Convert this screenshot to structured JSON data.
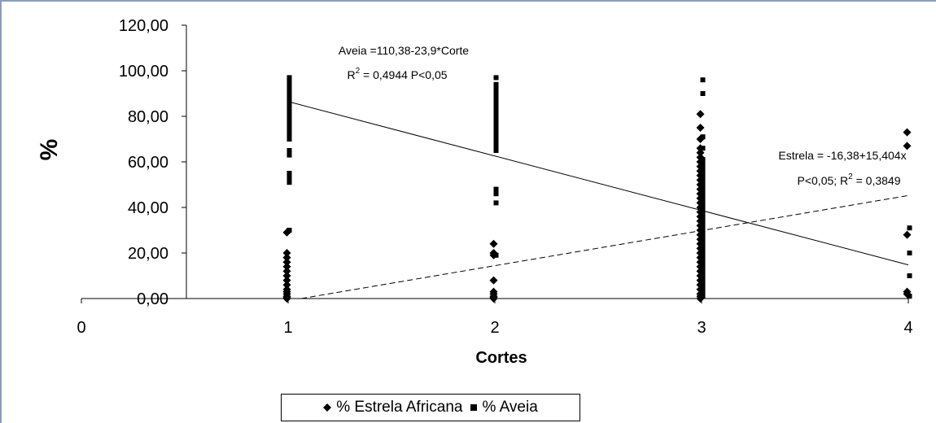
{
  "chart_data": {
    "type": "scatter",
    "xlabel": "Cortes",
    "ylabel": "%",
    "xlim": [
      0,
      4
    ],
    "ylim": [
      0,
      120
    ],
    "xticks": [
      "0",
      "1",
      "2",
      "3",
      "4"
    ],
    "yticks": [
      "0,00",
      "20,00",
      "40,00",
      "60,00",
      "80,00",
      "100,00",
      "120,00"
    ],
    "grid": false,
    "legend_position": "bottom",
    "series": [
      {
        "name": "% Estrela Africana",
        "marker": "diamond",
        "color": "#000000",
        "points": [
          [
            1,
            29
          ],
          [
            1,
            20
          ],
          [
            1,
            18
          ],
          [
            1,
            16
          ],
          [
            1,
            14
          ],
          [
            1,
            12
          ],
          [
            1,
            10
          ],
          [
            1,
            8
          ],
          [
            1,
            6
          ],
          [
            1,
            4
          ],
          [
            1,
            3
          ],
          [
            1,
            2
          ],
          [
            1,
            1
          ],
          [
            1,
            0.5
          ],
          [
            1,
            0
          ],
          [
            2,
            24
          ],
          [
            2,
            20
          ],
          [
            2,
            19
          ],
          [
            2,
            8
          ],
          [
            2,
            3
          ],
          [
            2,
            2
          ],
          [
            2,
            1
          ],
          [
            2,
            0.5
          ],
          [
            2,
            0
          ],
          [
            3,
            81
          ],
          [
            3,
            75
          ],
          [
            3,
            70
          ],
          [
            3,
            66
          ],
          [
            3,
            64
          ],
          [
            3,
            62
          ],
          [
            3,
            60
          ],
          [
            3,
            58
          ],
          [
            3,
            56
          ],
          [
            3,
            54
          ],
          [
            3,
            52
          ],
          [
            3,
            50
          ],
          [
            3,
            48
          ],
          [
            3,
            46
          ],
          [
            3,
            44
          ],
          [
            3,
            42
          ],
          [
            3,
            40
          ],
          [
            3,
            38
          ],
          [
            3,
            36
          ],
          [
            3,
            34
          ],
          [
            3,
            32
          ],
          [
            3,
            30
          ],
          [
            3,
            28
          ],
          [
            3,
            26
          ],
          [
            3,
            24
          ],
          [
            3,
            22
          ],
          [
            3,
            20
          ],
          [
            3,
            18
          ],
          [
            3,
            16
          ],
          [
            3,
            14
          ],
          [
            3,
            12
          ],
          [
            3,
            10
          ],
          [
            3,
            8
          ],
          [
            3,
            6
          ],
          [
            3,
            4
          ],
          [
            3,
            2
          ],
          [
            3,
            1
          ],
          [
            3,
            0
          ],
          [
            4,
            73
          ],
          [
            4,
            67
          ],
          [
            4,
            28
          ],
          [
            4,
            3
          ],
          [
            4,
            2
          ]
        ]
      },
      {
        "name": "% Aveia",
        "marker": "square",
        "color": "#000000",
        "points": [
          [
            1,
            97
          ],
          [
            1,
            95
          ],
          [
            1,
            93
          ],
          [
            1,
            92
          ],
          [
            1,
            91
          ],
          [
            1,
            90
          ],
          [
            1,
            89
          ],
          [
            1,
            88
          ],
          [
            1,
            87
          ],
          [
            1,
            86
          ],
          [
            1,
            85
          ],
          [
            1,
            84
          ],
          [
            1,
            83
          ],
          [
            1,
            81
          ],
          [
            1,
            79
          ],
          [
            1,
            78
          ],
          [
            1,
            77
          ],
          [
            1,
            76
          ],
          [
            1,
            75
          ],
          [
            1,
            74
          ],
          [
            1,
            73
          ],
          [
            1,
            72
          ],
          [
            1,
            71
          ],
          [
            1,
            70
          ],
          [
            1,
            65
          ],
          [
            1,
            63
          ],
          [
            1,
            55
          ],
          [
            1,
            53
          ],
          [
            1,
            51
          ],
          [
            1,
            30
          ],
          [
            2,
            97
          ],
          [
            2,
            94
          ],
          [
            2,
            92
          ],
          [
            2,
            90
          ],
          [
            2,
            89
          ],
          [
            2,
            88
          ],
          [
            2,
            87
          ],
          [
            2,
            86
          ],
          [
            2,
            85
          ],
          [
            2,
            84
          ],
          [
            2,
            83
          ],
          [
            2,
            82
          ],
          [
            2,
            80
          ],
          [
            2,
            78
          ],
          [
            2,
            77
          ],
          [
            2,
            76
          ],
          [
            2,
            75
          ],
          [
            2,
            74
          ],
          [
            2,
            73
          ],
          [
            2,
            72
          ],
          [
            2,
            71
          ],
          [
            2,
            70
          ],
          [
            2,
            69
          ],
          [
            2,
            68
          ],
          [
            2,
            67
          ],
          [
            2,
            66
          ],
          [
            2,
            65
          ],
          [
            2,
            48
          ],
          [
            2,
            46
          ],
          [
            2,
            42
          ],
          [
            2,
            19
          ],
          [
            3,
            96
          ],
          [
            3,
            90
          ],
          [
            3,
            71
          ],
          [
            3,
            66
          ],
          [
            3,
            61
          ],
          [
            3,
            59
          ],
          [
            3,
            57
          ],
          [
            3,
            55
          ],
          [
            3,
            53
          ],
          [
            3,
            51
          ],
          [
            3,
            49
          ],
          [
            3,
            47
          ],
          [
            3,
            45
          ],
          [
            3,
            43
          ],
          [
            3,
            41
          ],
          [
            3,
            39
          ],
          [
            3,
            37
          ],
          [
            3,
            35
          ],
          [
            3,
            33
          ],
          [
            3,
            31
          ],
          [
            3,
            29
          ],
          [
            3,
            27
          ],
          [
            3,
            25
          ],
          [
            3,
            23
          ],
          [
            3,
            21
          ],
          [
            3,
            19
          ],
          [
            3,
            17
          ],
          [
            3,
            15
          ],
          [
            3,
            13
          ],
          [
            3,
            11
          ],
          [
            3,
            9
          ],
          [
            3,
            7
          ],
          [
            3,
            5
          ],
          [
            3,
            3
          ],
          [
            3,
            1
          ],
          [
            4,
            31
          ],
          [
            4,
            20
          ],
          [
            4,
            10
          ],
          [
            4,
            1
          ]
        ]
      }
    ],
    "trendlines": [
      {
        "series": "% Aveia",
        "intercept": 110.38,
        "slope": -23.9,
        "x_range": [
          1,
          4
        ],
        "style": "solid"
      },
      {
        "series": "% Estrela Africana",
        "intercept": -16.38,
        "slope": 15.404,
        "x_range": [
          1,
          4
        ],
        "style": "dashed"
      }
    ],
    "annotations": {
      "aveia_eq": "Aveia =110,38-23,9*Corte",
      "aveia_r2_prefix": "R",
      "aveia_r2_exp": "2",
      "aveia_r2_rest": " = 0,4944 P<0,05",
      "estrela_eq": "Estrela = -16,38+15,404x",
      "estrela_p_prefix": "P<0,05; R",
      "estrela_r2_exp": "2",
      "estrela_r2_rest": " = 0,3849"
    }
  }
}
